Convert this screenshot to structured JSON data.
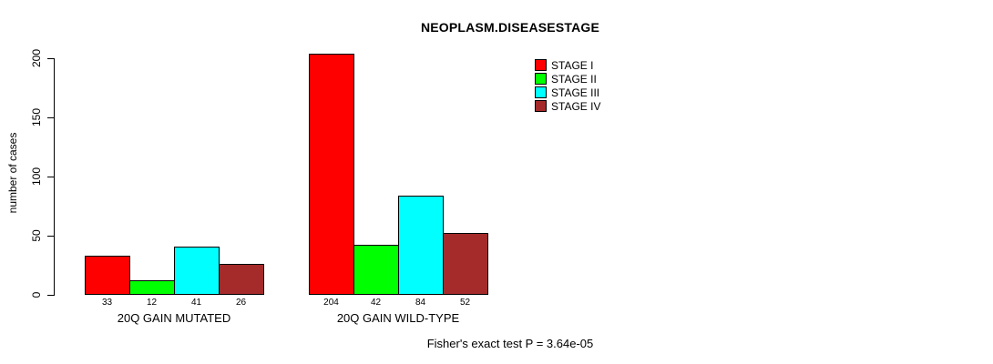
{
  "title": "NEOPLASM.DISEASESTAGE",
  "footer": "Fisher's exact test P = 3.64e-05",
  "colors": {
    "stage_i": "#ff0000",
    "stage_ii": "#00ff00",
    "stage_iii": "#00ffff",
    "stage_iv": "#a52a2a",
    "axis": "#000000",
    "background": "#ffffff"
  },
  "chart_data": {
    "type": "bar",
    "title": "NEOPLASM.DISEASESTAGE",
    "xlabel": "",
    "ylabel": "number of cases",
    "ylim": [
      0,
      200
    ],
    "yticks": [
      0,
      50,
      100,
      150,
      200
    ],
    "grid": false,
    "legend_position": "top-right-inside",
    "bar_value_labels_shown": true,
    "categories": [
      "20Q GAIN MUTATED",
      "20Q GAIN WILD-TYPE"
    ],
    "series": [
      {
        "name": "STAGE I",
        "color": "#ff0000",
        "values": [
          33,
          204
        ]
      },
      {
        "name": "STAGE II",
        "color": "#00ff00",
        "values": [
          12,
          42
        ]
      },
      {
        "name": "STAGE III",
        "color": "#00ffff",
        "values": [
          41,
          84
        ]
      },
      {
        "name": "STAGE IV",
        "color": "#a52a2a",
        "values": [
          26,
          52
        ]
      }
    ],
    "annotation": "Fisher's exact test P = 3.64e-05"
  },
  "legend": {
    "items": [
      {
        "label": "STAGE I",
        "color": "#ff0000"
      },
      {
        "label": "STAGE II",
        "color": "#00ff00"
      },
      {
        "label": "STAGE III",
        "color": "#00ffff"
      },
      {
        "label": "STAGE IV",
        "color": "#a52a2a"
      }
    ]
  }
}
